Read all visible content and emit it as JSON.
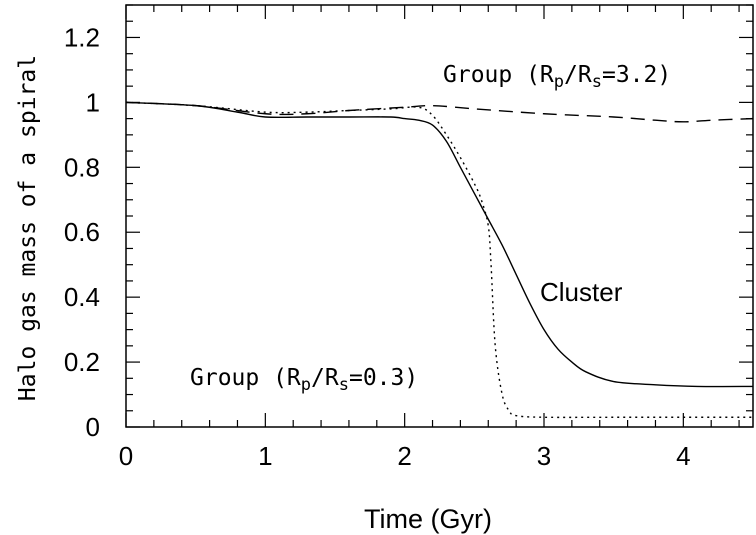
{
  "chart_data": {
    "type": "line",
    "xlabel": "Time  (Gyr)",
    "ylabel": "Halo gas mass of a spiral",
    "xlim": [
      0,
      4.5
    ],
    "ylim": [
      0,
      1.3
    ],
    "xticks": [
      "0",
      "1",
      "2",
      "3",
      "4"
    ],
    "yticks": [
      "0",
      "0.2",
      "0.4",
      "0.6",
      "0.8",
      "1",
      "1.2"
    ],
    "grid": false,
    "series": [
      {
        "name": "Cluster",
        "style": "solid",
        "x": [
          0,
          0.5,
          0.8,
          1.0,
          1.3,
          1.6,
          1.9,
          2.0,
          2.1,
          2.2,
          2.3,
          2.4,
          2.5,
          2.6,
          2.7,
          2.8,
          2.9,
          3.0,
          3.1,
          3.2,
          3.3,
          3.5,
          3.8,
          4.1,
          4.5
        ],
        "y": [
          1.0,
          0.99,
          0.97,
          0.955,
          0.955,
          0.955,
          0.955,
          0.95,
          0.945,
          0.93,
          0.88,
          0.8,
          0.72,
          0.64,
          0.56,
          0.47,
          0.38,
          0.3,
          0.24,
          0.2,
          0.17,
          0.14,
          0.13,
          0.125,
          0.125
        ]
      },
      {
        "name": "Group (Rp/Rs=0.3)",
        "style": "dotted",
        "x": [
          0,
          0.5,
          1.0,
          1.3,
          1.6,
          1.9,
          2.1,
          2.2,
          2.3,
          2.4,
          2.5,
          2.55,
          2.6,
          2.62,
          2.65,
          2.7,
          2.75,
          2.8,
          3.0,
          3.5,
          4.0,
          4.5
        ],
        "y": [
          1.0,
          0.99,
          0.97,
          0.97,
          0.975,
          0.98,
          0.985,
          0.96,
          0.9,
          0.83,
          0.75,
          0.7,
          0.62,
          0.5,
          0.25,
          0.1,
          0.05,
          0.035,
          0.03,
          0.03,
          0.03,
          0.03
        ]
      },
      {
        "name": "Group (Rp/Rs=3.2)",
        "style": "dashed",
        "x": [
          0,
          0.5,
          1.0,
          1.3,
          1.6,
          2.0,
          2.2,
          2.5,
          3.0,
          3.5,
          3.8,
          4.0,
          4.2,
          4.5
        ],
        "y": [
          1.0,
          0.99,
          0.965,
          0.965,
          0.975,
          0.985,
          0.99,
          0.98,
          0.965,
          0.955,
          0.945,
          0.94,
          0.945,
          0.95
        ]
      }
    ],
    "annotations": {
      "cluster": "Cluster",
      "group_high": {
        "prefix": "Group (R",
        "sub1": "p",
        "mid": "/R",
        "sub2": "s",
        "suffix": "=3.2)"
      },
      "group_low": {
        "prefix": "Group (R",
        "sub1": "p",
        "mid": "/R",
        "sub2": "s",
        "suffix": "=0.3)"
      }
    }
  }
}
